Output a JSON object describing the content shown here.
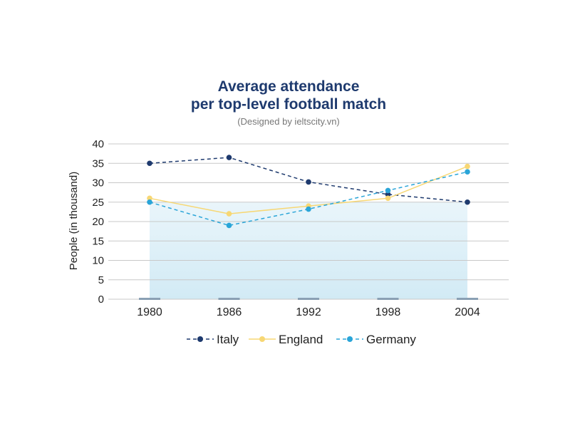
{
  "chart_data": {
    "type": "line",
    "title_line1": "Average attendance",
    "title_line2": "per top-level football match",
    "subtitle": "(Designed by ieltscity.vn)",
    "ylabel": "People (in thousand)",
    "xlabel": "",
    "categories": [
      "1980",
      "1986",
      "1992",
      "1998",
      "2004"
    ],
    "yticks": [
      "0",
      "5",
      "10",
      "15",
      "20",
      "25",
      "30",
      "35",
      "40"
    ],
    "ylim": [
      0,
      40
    ],
    "grid": true,
    "legend_position": "bottom",
    "series": [
      {
        "name": "Italy",
        "values": [
          35,
          36.5,
          30.2,
          27,
          25
        ],
        "color": "#1e3a6e",
        "dash": "dashed"
      },
      {
        "name": "England",
        "values": [
          26,
          22,
          24,
          26,
          34.2
        ],
        "color": "#f7d774",
        "dash": "solid"
      },
      {
        "name": "Germany",
        "values": [
          25,
          19,
          23.2,
          28,
          32.8
        ],
        "color": "#2aa5d8",
        "dash": "dashed"
      }
    ]
  },
  "colors": {
    "title": "#1e3a6e",
    "axis_text": "#222222",
    "subtitle": "#777777",
    "grid": "#c8c8c8",
    "area_top": "#e7f4fa",
    "area_bottom": "#cde8f4"
  }
}
